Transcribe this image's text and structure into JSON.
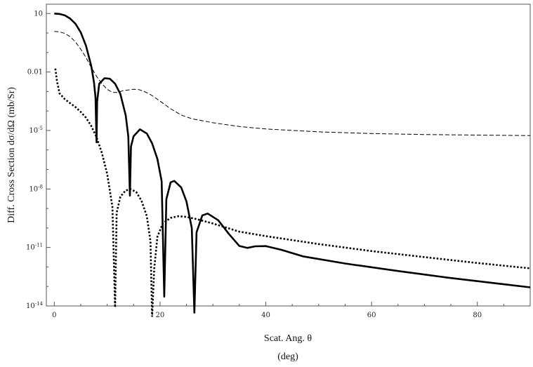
{
  "chart_data": {
    "type": "line",
    "title": "",
    "xlabel": "Scat. Ang. θ",
    "xlabel_unit": "(deg)",
    "ylabel": "Diff. Cross Section dσ/dΩ (mb/Sr)",
    "xlim": [
      -1.5,
      90
    ],
    "ylim": [
      1e-14,
      30
    ],
    "yscale": "log",
    "grid": false,
    "legend": "none",
    "x_ticks": [
      0,
      20,
      40,
      60,
      80
    ],
    "x_tick_labels": [
      "0",
      "20",
      "40",
      "60",
      "80"
    ],
    "y_ticks": [
      10,
      0.01,
      1e-05,
      1e-08,
      1e-11,
      1e-14
    ],
    "y_tick_labels": [
      "10",
      "0.01",
      "10-5",
      "10-8",
      "10-11",
      "10-14"
    ],
    "series": [
      {
        "style": "solid-thick",
        "points": [
          [
            0,
            10
          ],
          [
            1,
            9.5
          ],
          [
            2,
            8
          ],
          [
            3,
            5.5
          ],
          [
            4,
            3
          ],
          [
            5,
            1.1
          ],
          [
            6,
            0.22
          ],
          [
            7,
            0.02
          ],
          [
            7.5,
            0.003
          ],
          [
            7.8,
            0.0005
          ],
          [
            8.0,
            2.5e-06
          ],
          [
            8.1,
            0.0003
          ],
          [
            8.5,
            0.0025
          ],
          [
            9.5,
            0.0048
          ],
          [
            10.5,
            0.0045
          ],
          [
            11.5,
            0.0025
          ],
          [
            12.5,
            0.00075
          ],
          [
            13.5,
            6e-05
          ],
          [
            14.0,
            5e-06
          ],
          [
            14.3,
            4.5e-09
          ],
          [
            14.5,
            1.5e-06
          ],
          [
            15,
            5e-06
          ],
          [
            16.2,
            1.15e-05
          ],
          [
            17.5,
            7e-06
          ],
          [
            18.5,
            2.2e-06
          ],
          [
            19.5,
            3.5e-07
          ],
          [
            20.3,
            2.5e-08
          ],
          [
            20.8,
            3e-14
          ],
          [
            21.2,
            3e-09
          ],
          [
            22,
            2.2e-08
          ],
          [
            22.7,
            2.6e-08
          ],
          [
            24,
            1.2e-08
          ],
          [
            25,
            2.3e-09
          ],
          [
            26,
            1e-10
          ],
          [
            26.5,
            4.5e-15
          ],
          [
            26.9,
            6e-11
          ],
          [
            28,
            4.4e-10
          ],
          [
            29,
            5.5e-10
          ],
          [
            31,
            2.5e-10
          ],
          [
            33,
            5e-11
          ],
          [
            35,
            1.2e-11
          ],
          [
            36.5,
            9.5e-12
          ],
          [
            38,
            1.15e-11
          ],
          [
            40,
            1.18e-11
          ],
          [
            43,
            7.5e-12
          ],
          [
            47,
            3.5e-12
          ],
          [
            55,
            1.5e-12
          ],
          [
            65,
            6.2e-13
          ],
          [
            75,
            2.7e-13
          ],
          [
            85,
            1.3e-13
          ],
          [
            90,
            9e-14
          ]
        ]
      },
      {
        "style": "dashed-thin",
        "points": [
          [
            0,
            1.2
          ],
          [
            1,
            1.15
          ],
          [
            2,
            0.95
          ],
          [
            3,
            0.65
          ],
          [
            4,
            0.35
          ],
          [
            5,
            0.15
          ],
          [
            6,
            0.055
          ],
          [
            7,
            0.017
          ],
          [
            8,
            0.006
          ],
          [
            9,
            0.0025
          ],
          [
            10,
            0.0013
          ],
          [
            11,
            0.0009
          ],
          [
            12,
            0.0009
          ],
          [
            13,
            0.0011
          ],
          [
            14,
            0.0012
          ],
          [
            15,
            0.0013
          ],
          [
            16,
            0.00125
          ],
          [
            17,
            0.001
          ],
          [
            18,
            0.00075
          ],
          [
            19,
            0.0005
          ],
          [
            20,
            0.00032
          ],
          [
            22,
            0.00013
          ],
          [
            24,
            6.2e-05
          ],
          [
            26,
            4e-05
          ],
          [
            30,
            2.5e-05
          ],
          [
            35,
            1.6e-05
          ],
          [
            40,
            1.2e-05
          ],
          [
            50,
            8.5e-06
          ],
          [
            60,
            7e-06
          ],
          [
            70,
            6.2e-06
          ],
          [
            80,
            5.8e-06
          ],
          [
            90,
            5.5e-06
          ]
        ]
      },
      {
        "style": "dotted-thick",
        "points": [
          [
            0.2,
            0.015
          ],
          [
            0.5,
            0.0035
          ],
          [
            1,
            0.0008
          ],
          [
            2,
            0.0004
          ],
          [
            3,
            0.00025
          ],
          [
            4,
            0.00016
          ],
          [
            5,
            9e-05
          ],
          [
            6,
            4.5e-05
          ],
          [
            7,
            1.7e-05
          ],
          [
            8,
            4.5e-06
          ],
          [
            9,
            7e-07
          ],
          [
            10,
            6e-08
          ],
          [
            11,
            1.2e-09
          ],
          [
            11.5,
            8.5e-15
          ],
          [
            11.8,
            6e-10
          ],
          [
            12.5,
            4e-09
          ],
          [
            13.5,
            8.5e-09
          ],
          [
            14.5,
            9.5e-09
          ],
          [
            15.5,
            7e-09
          ],
          [
            16.5,
            2.5e-09
          ],
          [
            17.5,
            4e-10
          ],
          [
            18.2,
            2e-11
          ],
          [
            18.5,
            2.8e-15
          ],
          [
            18.9,
            8e-13
          ],
          [
            19.5,
            3.5e-11
          ],
          [
            20.5,
            1.7e-10
          ],
          [
            22,
            3.3e-10
          ],
          [
            23.5,
            4e-10
          ],
          [
            25,
            3.7e-10
          ],
          [
            27,
            2.8e-10
          ],
          [
            30,
            1.7e-10
          ],
          [
            35,
            6.5e-11
          ],
          [
            40,
            3.8e-11
          ],
          [
            50,
            1.5e-11
          ],
          [
            60,
            6.5e-12
          ],
          [
            70,
            3.2e-12
          ],
          [
            80,
            1.6e-12
          ],
          [
            90,
            8.5e-13
          ]
        ]
      }
    ]
  }
}
